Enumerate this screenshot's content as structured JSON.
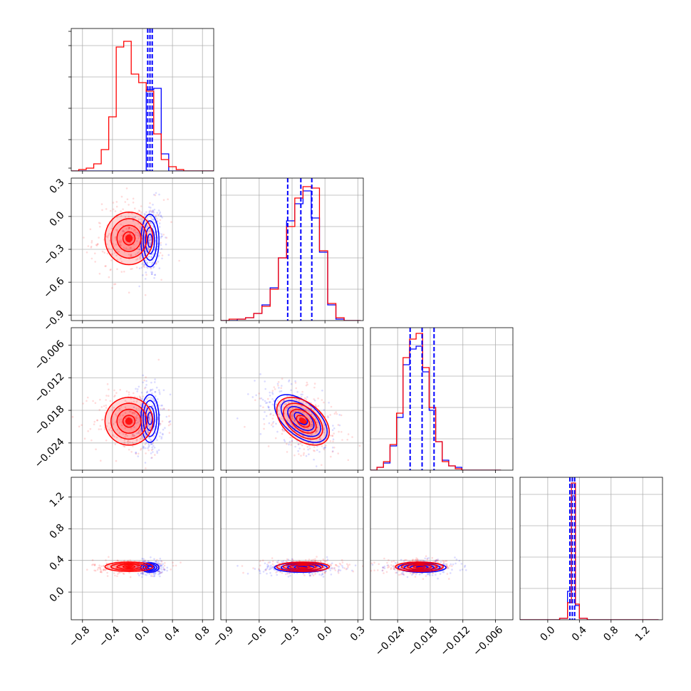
{
  "chart_data": {
    "type": "corner",
    "title": "",
    "n_params": 4,
    "colors": {
      "blue": "#0000ff",
      "red": "#ff0000",
      "grid": "#b0b0b0",
      "frame": "#000000"
    },
    "series": [
      {
        "color": "blue",
        "means": [
          0.1,
          -0.22,
          -0.0195,
          0.31
        ],
        "sigmas": [
          0.06,
          0.12,
          0.0022,
          0.03
        ],
        "quantiles": [
          [
            0.07,
            0.1,
            0.13
          ],
          [
            -0.34,
            -0.22,
            -0.12
          ],
          [
            -0.0217,
            -0.0195,
            -0.0173
          ],
          [
            0.28,
            0.31,
            0.34
          ]
        ]
      },
      {
        "color": "red",
        "means": [
          -0.18,
          -0.2,
          -0.02,
          0.32
        ],
        "sigmas": [
          0.16,
          0.12,
          0.0022,
          0.03
        ]
      }
    ],
    "axes": [
      {
        "range": [
          -0.95,
          0.95
        ],
        "ticks": [
          -0.8,
          -0.4,
          0.0,
          0.4,
          0.8
        ],
        "tick_labels": [
          "−0.8",
          "−0.4",
          "0.0",
          "0.4",
          "0.8"
        ]
      },
      {
        "range": [
          -0.95,
          0.35
        ],
        "ticks": [
          -0.9,
          -0.6,
          -0.3,
          0.0,
          0.3
        ],
        "tick_labels": [
          "−0.9",
          "−0.6",
          "−0.3",
          "0.0",
          "0.3"
        ]
      },
      {
        "range": [
          -0.029,
          -0.0028
        ],
        "ticks": [
          -0.024,
          -0.018,
          -0.012,
          -0.006
        ],
        "tick_labels": [
          "−0.024",
          "−0.018",
          "−0.012",
          "−0.006"
        ]
      },
      {
        "range": [
          -0.35,
          1.45
        ],
        "ticks": [
          0.0,
          0.4,
          0.8,
          1.2
        ],
        "tick_labels": [
          "0.0",
          "0.4",
          "0.8",
          "1.2"
        ]
      }
    ],
    "histograms": [
      {
        "bin_edges": [
          -0.95,
          -0.85,
          -0.75,
          -0.65,
          -0.55,
          -0.45,
          -0.35,
          -0.25,
          -0.15,
          -0.05,
          0.05,
          0.15,
          0.25,
          0.35,
          0.45,
          0.55,
          0.65,
          0.75,
          0.85,
          0.95
        ],
        "red": [
          0,
          0.01,
          0.02,
          0.05,
          0.15,
          0.38,
          0.87,
          0.91,
          0.68,
          0.62,
          0.56,
          0.26,
          0.08,
          0.03,
          0.01,
          0,
          0,
          0,
          0
        ],
        "blue": [
          0,
          0,
          0,
          0,
          0,
          0,
          0,
          0,
          0,
          0,
          0.57,
          0.58,
          0.12,
          0,
          0,
          0,
          0,
          0,
          0
        ]
      },
      {
        "bin_edges": [
          -0.95,
          -0.875,
          -0.8,
          -0.725,
          -0.65,
          -0.575,
          -0.5,
          -0.425,
          -0.35,
          -0.275,
          -0.2,
          -0.125,
          -0.05,
          0.025,
          0.1,
          0.175,
          0.25,
          0.325
        ],
        "blue": [
          0,
          0,
          0.01,
          0.02,
          0.05,
          0.11,
          0.23,
          0.44,
          0.7,
          0.82,
          0.91,
          0.72,
          0.48,
          0.11,
          0.01,
          0,
          0
        ],
        "red": [
          0,
          0.01,
          0.01,
          0.02,
          0.05,
          0.1,
          0.22,
          0.44,
          0.66,
          0.86,
          0.94,
          0.93,
          0.49,
          0.12,
          0.02,
          0,
          0
        ]
      },
      {
        "bin_edges": [
          -0.029,
          -0.0278,
          -0.0266,
          -0.0254,
          -0.0242,
          -0.023,
          -0.0218,
          -0.0206,
          -0.0194,
          -0.0182,
          -0.017,
          -0.0158,
          -0.0146,
          -0.0134,
          -0.0122,
          -0.011,
          -0.0098,
          -0.0086,
          -0.0074,
          -0.0062,
          -0.005
        ],
        "blue": [
          0,
          0.02,
          0.05,
          0.17,
          0.37,
          0.74,
          0.85,
          0.87,
          0.69,
          0.42,
          0.2,
          0.07,
          0.03,
          0.02,
          0,
          0,
          0,
          0,
          0,
          0
        ],
        "red": [
          0,
          0.02,
          0.06,
          0.18,
          0.4,
          0.79,
          0.92,
          0.96,
          0.72,
          0.44,
          0.2,
          0.06,
          0.03,
          0.01,
          0,
          0,
          0,
          0,
          0,
          0
        ]
      },
      {
        "bin_edges": [
          -0.35,
          -0.25,
          -0.15,
          -0.05,
          0.05,
          0.15,
          0.25,
          0.3,
          0.35,
          0.4,
          0.5,
          0.6,
          0.7,
          0.8,
          0.9,
          1.0,
          1.1,
          1.2,
          1.3,
          1.4
        ],
        "blue": [
          0,
          0,
          0,
          0,
          0,
          0.01,
          0.2,
          0.87,
          0.1,
          0.01,
          0,
          0,
          0,
          0,
          0,
          0,
          0,
          0,
          0
        ],
        "red": [
          0,
          0,
          0,
          0,
          0,
          0.01,
          0.12,
          0.96,
          0.11,
          0.01,
          0,
          0,
          0,
          0,
          0,
          0,
          0,
          0,
          0
        ]
      }
    ],
    "contour_levels_sigma": [
      0.5,
      1.0,
      1.5,
      2.0
    ],
    "grid": true,
    "legend": "none"
  }
}
